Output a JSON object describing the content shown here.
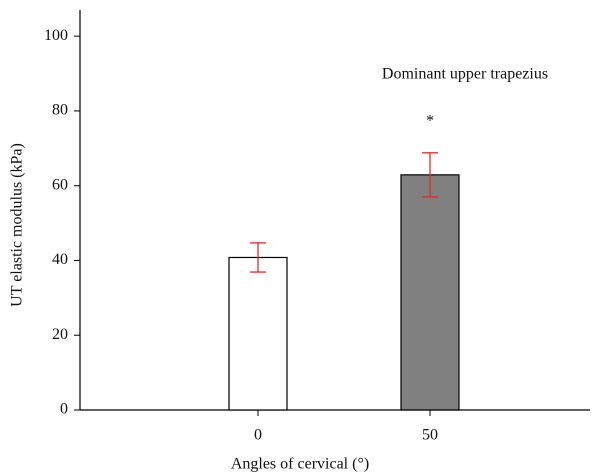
{
  "chart_data": {
    "type": "bar",
    "x_label": "Angles of cervical (°)",
    "y_label": "UT elastic modulus (kPa)",
    "categories": [
      "0",
      "50"
    ],
    "values": [
      40.8,
      62.9
    ],
    "errors": [
      3.9,
      5.9
    ],
    "colors": [
      "#ffffff",
      "#808080"
    ],
    "error_color": "#e8262b",
    "ylim": [
      0,
      107
    ],
    "yticks": [
      0,
      20,
      40,
      60,
      80,
      100
    ],
    "annotations": [
      "Dominant upper trapezius",
      "*"
    ]
  }
}
